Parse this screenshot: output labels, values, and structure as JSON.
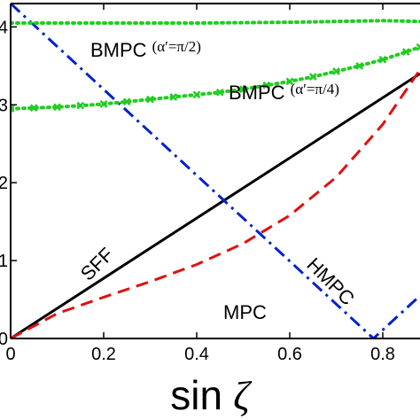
{
  "chart_data": {
    "type": "line",
    "xlabel_text": "sin",
    "xlabel_symbol": "ζ",
    "xlim": [
      0,
      0.88
    ],
    "ylim": [
      0,
      4.3
    ],
    "x_ticks": [
      0,
      0.2,
      0.4,
      0.6,
      0.8
    ],
    "x_tick_labels": [
      "0",
      "0.2",
      "0.4",
      "0.6",
      "0.8"
    ],
    "y_ticks": [
      0,
      1,
      2,
      3,
      4
    ],
    "y_tick_labels": [
      "0",
      "1",
      "2",
      "3",
      "4"
    ],
    "grid": false,
    "series": [
      {
        "name": "SFF",
        "color": "#000000",
        "style": "solid",
        "x": [
          0,
          0.88
        ],
        "y": [
          0,
          3.4
        ]
      },
      {
        "name": "MPC",
        "color": "#dd1111",
        "style": "dashed",
        "x": [
          0,
          0.1,
          0.2,
          0.3,
          0.4,
          0.5,
          0.6,
          0.7,
          0.8,
          0.88
        ],
        "y": [
          0,
          0.32,
          0.53,
          0.73,
          0.95,
          1.22,
          1.58,
          2.07,
          2.75,
          3.45
        ]
      },
      {
        "name": "HMPC",
        "color": "#0022cc",
        "style": "dashdot",
        "x": [
          0,
          0.78,
          0.88
        ],
        "y": [
          4.3,
          0.0,
          0.55
        ]
      },
      {
        "name": "BMPC (α′=π/2)",
        "color": "#22cc22",
        "style": "dotted",
        "x": [
          0,
          0.2,
          0.4,
          0.6,
          0.8,
          0.88
        ],
        "y": [
          4.05,
          4.05,
          4.05,
          4.06,
          4.08,
          4.07
        ]
      },
      {
        "name": "BMPC (α′=π/4)",
        "color": "#22cc22",
        "style": "dotted-x",
        "x": [
          0,
          0.05,
          0.1,
          0.15,
          0.2,
          0.25,
          0.3,
          0.35,
          0.4,
          0.45,
          0.5,
          0.55,
          0.6,
          0.65,
          0.7,
          0.75,
          0.8,
          0.85,
          0.88
        ],
        "y": [
          2.95,
          2.96,
          2.97,
          2.99,
          3.01,
          3.04,
          3.07,
          3.1,
          3.13,
          3.16,
          3.2,
          3.25,
          3.3,
          3.36,
          3.43,
          3.5,
          3.58,
          3.68,
          3.74
        ]
      }
    ],
    "annotations": [
      {
        "id": "bmpc-half",
        "main": "BMPC",
        "sub": "(α′=π/2)",
        "x": 0.0,
        "y": 3.85
      },
      {
        "id": "bmpc-quarter",
        "main": "BMPC",
        "sub": "(α′=π/4)",
        "x": 0.41,
        "y": 3.35
      },
      {
        "id": "sff",
        "main": "SFF",
        "x": 0.14,
        "y": 0.8
      },
      {
        "id": "mpc",
        "main": "MPC",
        "x": 0.53,
        "y": 0.23
      },
      {
        "id": "hmpc",
        "main": "HMPC",
        "x": 0.67,
        "y": 0.35
      }
    ]
  }
}
